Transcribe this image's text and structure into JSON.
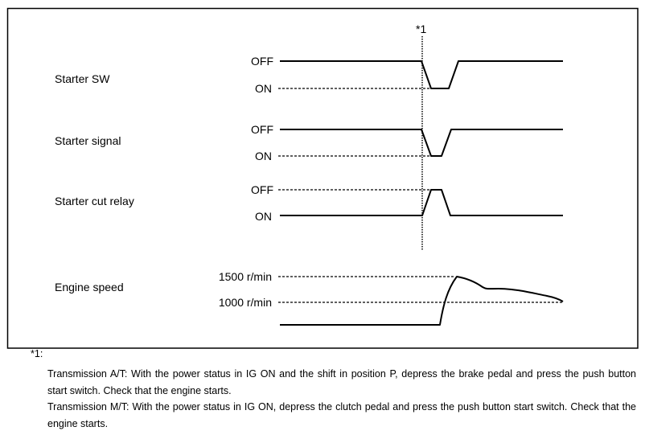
{
  "marker": "*1",
  "signals": [
    {
      "name": "Starter SW",
      "high_label": "OFF",
      "low_label": "ON"
    },
    {
      "name": "Starter signal",
      "high_label": "OFF",
      "low_label": "ON"
    },
    {
      "name": "Starter cut relay",
      "high_label": "OFF",
      "low_label": "ON"
    },
    {
      "name": "Engine speed",
      "high_label": "1500 r/min",
      "low_label": "1000 r/min"
    }
  ],
  "footnote": {
    "mark": "*1:",
    "lines": [
      "Transmission A/T: With the power status in IG ON and the shift in position P, depress the brake pedal and press the push button start switch. Check that the engine starts.",
      "Transmission M/T: With the power status in IG ON, depress the clutch pedal and press the push button start switch. Check that the engine starts."
    ]
  }
}
